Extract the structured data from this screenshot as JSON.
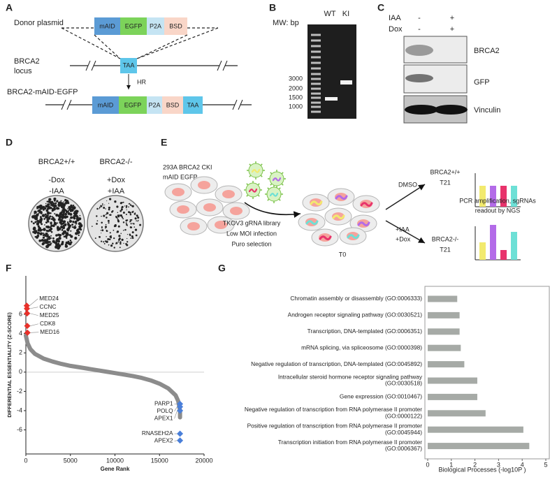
{
  "figure": {
    "panel_labels": [
      "A",
      "B",
      "C",
      "D",
      "E",
      "F",
      "G"
    ],
    "a": {
      "donor": "Donor plasmid",
      "locus": [
        "BRCA2",
        "locus"
      ],
      "product": "BRCA2-mAID-EGFP",
      "hr": "HR",
      "segments": [
        "mAID",
        "EGFP",
        "P2A",
        "BSD"
      ],
      "stop": "TAA"
    },
    "b": {
      "mw": "MW: bp",
      "lanes": [
        "WT",
        "KI"
      ],
      "sizes": [
        3000,
        2000,
        1500,
        1000
      ]
    },
    "c": {
      "treatments": [
        "IAA",
        "Dox"
      ],
      "signs": [
        [
          "-",
          "+"
        ],
        [
          "-",
          "+"
        ]
      ],
      "blots": [
        "BRCA2",
        "GFP",
        "Vinculin"
      ]
    },
    "d": {
      "genotypes": [
        "BRCA2+/+",
        "BRCA2-/-"
      ],
      "conditions": [
        [
          "-Dox",
          "-IAA"
        ],
        [
          "+Dox",
          "+IAA"
        ]
      ]
    },
    "e": {
      "cells": [
        "293A BRCA2 CKI",
        "mAID EGFP"
      ],
      "library": [
        "TKOV3 gRNA library",
        "Low MOI infection",
        "Puro selection"
      ],
      "t0": "T0",
      "control": "DMSO",
      "treatment": [
        "+IAA",
        "+Dox"
      ],
      "arms": [
        [
          "BRCA2+/+",
          "T21"
        ],
        [
          "BRCA2-/-",
          "T21"
        ]
      ],
      "readout": [
        "PCR amplification, sgRNAs",
        "readout by NGS"
      ]
    }
  },
  "chart_data": [
    {
      "type": "scatter",
      "ylabel": "DIFFERENTIAL  ESSENTIALITY (Z-SCORE)",
      "xlabel": "Gene Rank",
      "color": "#8c8c8c",
      "x": [
        0,
        200,
        500,
        1000,
        2000,
        3000,
        4000,
        5000,
        6000,
        7000,
        8000,
        9000,
        10000,
        11000,
        12000,
        13000,
        14000,
        15000,
        16000,
        16800,
        17100,
        17300,
        17300
      ],
      "values": [
        3.8,
        3.0,
        2.4,
        1.9,
        1.4,
        1.1,
        0.85,
        0.65,
        0.5,
        0.35,
        0.2,
        0.05,
        -0.1,
        -0.25,
        -0.4,
        -0.6,
        -0.85,
        -1.2,
        -1.7,
        -2.4,
        -3.0,
        -4.0,
        -4.7
      ],
      "highlights": [
        {
          "label": "MED24",
          "x": 100,
          "y": 6.9,
          "color": "#e8312a"
        },
        {
          "label": "CCNC",
          "x": 120,
          "y": 6.6,
          "color": "#e8312a"
        },
        {
          "label": "MED25",
          "x": 140,
          "y": 6.1,
          "color": "#e8312a"
        },
        {
          "label": "CDK8",
          "x": 160,
          "y": 4.8,
          "color": "#e8312a"
        },
        {
          "label": "MED16",
          "x": 180,
          "y": 4.1,
          "color": "#e8312a"
        },
        {
          "label": "PARP1",
          "x": 17300,
          "y": -3.3,
          "color": "#4a7fd9"
        },
        {
          "label": "POLQ",
          "x": 17300,
          "y": -3.6,
          "color": "#4a7fd9"
        },
        {
          "label": "APEX1",
          "x": 17300,
          "y": -4.0,
          "color": "#4a7fd9"
        },
        {
          "label": "RNASEH2A",
          "x": 17300,
          "y": -6.4,
          "color": "#4a7fd9"
        },
        {
          "label": "APEX2",
          "x": 17300,
          "y": -7.1,
          "color": "#4a7fd9"
        }
      ],
      "xlim": [
        0,
        20000
      ],
      "ylim": [
        -8.5,
        10
      ],
      "xticks": [
        0,
        5000,
        10000,
        15000,
        20000
      ],
      "yticks": [
        -6,
        -4,
        -2,
        0,
        2,
        4,
        6
      ],
      "zero_line": true
    },
    {
      "type": "bar",
      "orientation": "horizontal",
      "xlabel": "Biological Processes (-log10P )",
      "color": "#a6aaa6",
      "categories": [
        "Chromatin assembly or disassembly (GO:0006333)",
        "Androgen receptor signaling pathway (GO:0030521)",
        "Transcription, DNA-templated (GO:0006351)",
        "mRNA splicing, via spliceosome (GO:0000398)",
        "Negative regulation of transcription, DNA-templated (GO:0045892)",
        "Intracellular steroid hormone receptor signaling pathway\n(GO:0030518)",
        "Gene expression (GO:0010467)",
        "Negative regulation of transcription from RNA polymerase II promoter\n(GO:0000122)",
        "Positive regulation of transcription from RNA polymerase II promoter\n(GO:0045944)",
        "Transcription initiation from RNA polymerase II promoter\n(GO:0006367)"
      ],
      "values": [
        1.25,
        1.35,
        1.35,
        1.4,
        1.55,
        2.1,
        2.1,
        2.45,
        4.05,
        4.3
      ],
      "xlim": [
        0,
        5
      ],
      "xticks": [
        0,
        1,
        2,
        3,
        4,
        5
      ]
    }
  ]
}
